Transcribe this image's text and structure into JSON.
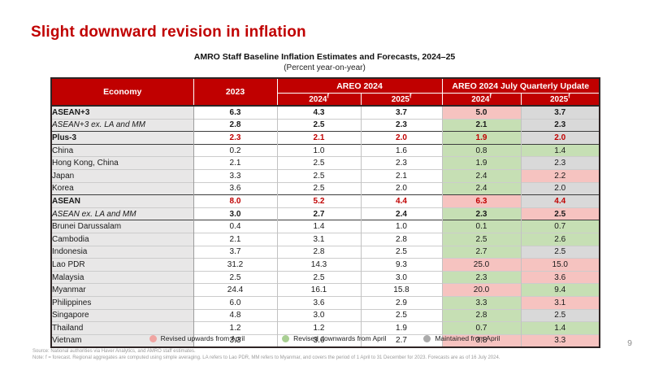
{
  "slide": {
    "title": "Slight downward revision in inflation",
    "page_number": "9"
  },
  "table": {
    "title": "AMRO Staff Baseline Inflation Estimates and Forecasts, 2024–25",
    "subtitle": "(Percent year-on-year)",
    "forecast_marker": "f",
    "header": {
      "economy": "Economy",
      "year_2023": "2023",
      "areo_2024_group": "AREO 2024",
      "areo_july_group": "AREO 2024 July Quarterly Update",
      "sub_year_2024": "2024",
      "sub_year_2025": "2025"
    },
    "status_colors": {
      "up": "#f6c3c0",
      "down": "#c6dfb4",
      "maintained": "#d9d9d9"
    },
    "header_color": "#c00000",
    "accent_text_color": "#c00000",
    "rows": [
      {
        "economy": "ASEAN+3",
        "indent": 0,
        "style": "bold",
        "values_red": false,
        "v2023": "6.3",
        "areo_2024": "4.3",
        "areo_2025": "3.7",
        "july_2024": "5.0",
        "july_2024_status": "up",
        "july_2025": "3.7",
        "july_2025_status": "maintained",
        "separator_below": "thin"
      },
      {
        "economy": "ASEAN+3 ex. LA and MM",
        "indent": 0,
        "style": "ex",
        "values_red": false,
        "v2023": "2.8",
        "areo_2024": "2.5",
        "areo_2025": "2.3",
        "july_2024": "2.1",
        "july_2024_status": "down",
        "july_2025": "2.3",
        "july_2025_status": "maintained",
        "separator_below": "thick"
      },
      {
        "economy": "Plus-3",
        "indent": 1,
        "style": "bold",
        "values_red": true,
        "v2023": "2.3",
        "areo_2024": "2.1",
        "areo_2025": "2.0",
        "july_2024": "1.9",
        "july_2024_status": "down",
        "july_2025": "2.0",
        "july_2025_status": "maintained",
        "separator_below": "thick"
      },
      {
        "economy": "China",
        "indent": 2,
        "style": "plain",
        "values_red": false,
        "v2023": "0.2",
        "areo_2024": "1.0",
        "areo_2025": "1.6",
        "july_2024": "0.8",
        "july_2024_status": "down",
        "july_2025": "1.4",
        "july_2025_status": "down",
        "separator_below": "thin"
      },
      {
        "economy": "Hong Kong, China",
        "indent": 2,
        "style": "plain",
        "values_red": false,
        "v2023": "2.1",
        "areo_2024": "2.5",
        "areo_2025": "2.3",
        "july_2024": "1.9",
        "july_2024_status": "down",
        "july_2025": "2.3",
        "july_2025_status": "maintained",
        "separator_below": "thin"
      },
      {
        "economy": "Japan",
        "indent": 2,
        "style": "plain",
        "values_red": false,
        "v2023": "3.3",
        "areo_2024": "2.5",
        "areo_2025": "2.1",
        "july_2024": "2.4",
        "july_2024_status": "down",
        "july_2025": "2.2",
        "july_2025_status": "up",
        "separator_below": "thin"
      },
      {
        "economy": "Korea",
        "indent": 2,
        "style": "plain",
        "values_red": false,
        "v2023": "3.6",
        "areo_2024": "2.5",
        "areo_2025": "2.0",
        "july_2024": "2.4",
        "july_2024_status": "down",
        "july_2025": "2.0",
        "july_2025_status": "maintained",
        "separator_below": "thick"
      },
      {
        "economy": "ASEAN",
        "indent": 1,
        "style": "bold",
        "values_red": true,
        "v2023": "8.0",
        "areo_2024": "5.2",
        "areo_2025": "4.4",
        "july_2024": "6.3",
        "july_2024_status": "up",
        "july_2025": "4.4",
        "july_2025_status": "maintained",
        "separator_below": "thin"
      },
      {
        "economy": "ASEAN ex. LA and MM",
        "indent": 0,
        "style": "ex",
        "values_red": false,
        "v2023": "3.0",
        "areo_2024": "2.7",
        "areo_2025": "2.4",
        "july_2024": "2.3",
        "july_2024_status": "down",
        "july_2025": "2.5",
        "july_2025_status": "up",
        "separator_below": "thick"
      },
      {
        "economy": "Brunei Darussalam",
        "indent": 2,
        "style": "plain",
        "values_red": false,
        "v2023": "0.4",
        "areo_2024": "1.4",
        "areo_2025": "1.0",
        "july_2024": "0.1",
        "july_2024_status": "down",
        "july_2025": "0.7",
        "july_2025_status": "down",
        "separator_below": "thin"
      },
      {
        "economy": "Cambodia",
        "indent": 2,
        "style": "plain",
        "values_red": false,
        "v2023": "2.1",
        "areo_2024": "3.1",
        "areo_2025": "2.8",
        "july_2024": "2.5",
        "july_2024_status": "down",
        "july_2025": "2.6",
        "july_2025_status": "down",
        "separator_below": "thin"
      },
      {
        "economy": "Indonesia",
        "indent": 2,
        "style": "plain",
        "values_red": false,
        "v2023": "3.7",
        "areo_2024": "2.8",
        "areo_2025": "2.5",
        "july_2024": "2.7",
        "july_2024_status": "down",
        "july_2025": "2.5",
        "july_2025_status": "maintained",
        "separator_below": "thin"
      },
      {
        "economy": "Lao PDR",
        "indent": 2,
        "style": "plain",
        "values_red": false,
        "v2023": "31.2",
        "areo_2024": "14.3",
        "areo_2025": "9.3",
        "july_2024": "25.0",
        "july_2024_status": "up",
        "july_2025": "15.0",
        "july_2025_status": "up",
        "separator_below": "thin"
      },
      {
        "economy": "Malaysia",
        "indent": 2,
        "style": "plain",
        "values_red": false,
        "v2023": "2.5",
        "areo_2024": "2.5",
        "areo_2025": "3.0",
        "july_2024": "2.3",
        "july_2024_status": "down",
        "july_2025": "3.6",
        "july_2025_status": "up",
        "separator_below": "thin"
      },
      {
        "economy": "Myanmar",
        "indent": 2,
        "style": "plain",
        "values_red": false,
        "v2023": "24.4",
        "areo_2024": "16.1",
        "areo_2025": "15.8",
        "july_2024": "20.0",
        "july_2024_status": "up",
        "july_2025": "9.4",
        "july_2025_status": "down",
        "separator_below": "thin"
      },
      {
        "economy": "Philippines",
        "indent": 2,
        "style": "plain",
        "values_red": false,
        "v2023": "6.0",
        "areo_2024": "3.6",
        "areo_2025": "2.9",
        "july_2024": "3.3",
        "july_2024_status": "down",
        "july_2025": "3.1",
        "july_2025_status": "up",
        "separator_below": "thin"
      },
      {
        "economy": "Singapore",
        "indent": 2,
        "style": "plain",
        "values_red": false,
        "v2023": "4.8",
        "areo_2024": "3.0",
        "areo_2025": "2.5",
        "july_2024": "2.8",
        "july_2024_status": "down",
        "july_2025": "2.5",
        "july_2025_status": "maintained",
        "separator_below": "thin"
      },
      {
        "economy": "Thailand",
        "indent": 2,
        "style": "plain",
        "values_red": false,
        "v2023": "1.2",
        "areo_2024": "1.2",
        "areo_2025": "1.9",
        "july_2024": "0.7",
        "july_2024_status": "down",
        "july_2025": "1.4",
        "july_2025_status": "down",
        "separator_below": "thin"
      },
      {
        "economy": "Vietnam",
        "indent": 2,
        "style": "plain",
        "values_red": false,
        "v2023": "3.3",
        "areo_2024": "3.6",
        "areo_2025": "2.7",
        "july_2024": "3.8",
        "july_2024_status": "up",
        "july_2025": "3.3",
        "july_2025_status": "up",
        "separator_below": "thick"
      }
    ],
    "legend": [
      {
        "label": "Revised upwards from April",
        "color": "#f0a5a2",
        "status": "up"
      },
      {
        "label": "Revised downwards from April",
        "color": "#a9cf93",
        "status": "down"
      },
      {
        "label": "Maintained from April",
        "color": "#ababab",
        "status": "maintained"
      }
    ]
  },
  "footer": {
    "source": "Source: National authorities via Haver Analytics, and AMRO staff estimates.",
    "note": "Note: f = forecast. Regional aggregates are computed using simple averaging. LA refers to Lao PDR, MM refers to Myanmar, and covers the period of 1 April to 31 December for 2023. Forecasts are as of 16 July 2024."
  }
}
